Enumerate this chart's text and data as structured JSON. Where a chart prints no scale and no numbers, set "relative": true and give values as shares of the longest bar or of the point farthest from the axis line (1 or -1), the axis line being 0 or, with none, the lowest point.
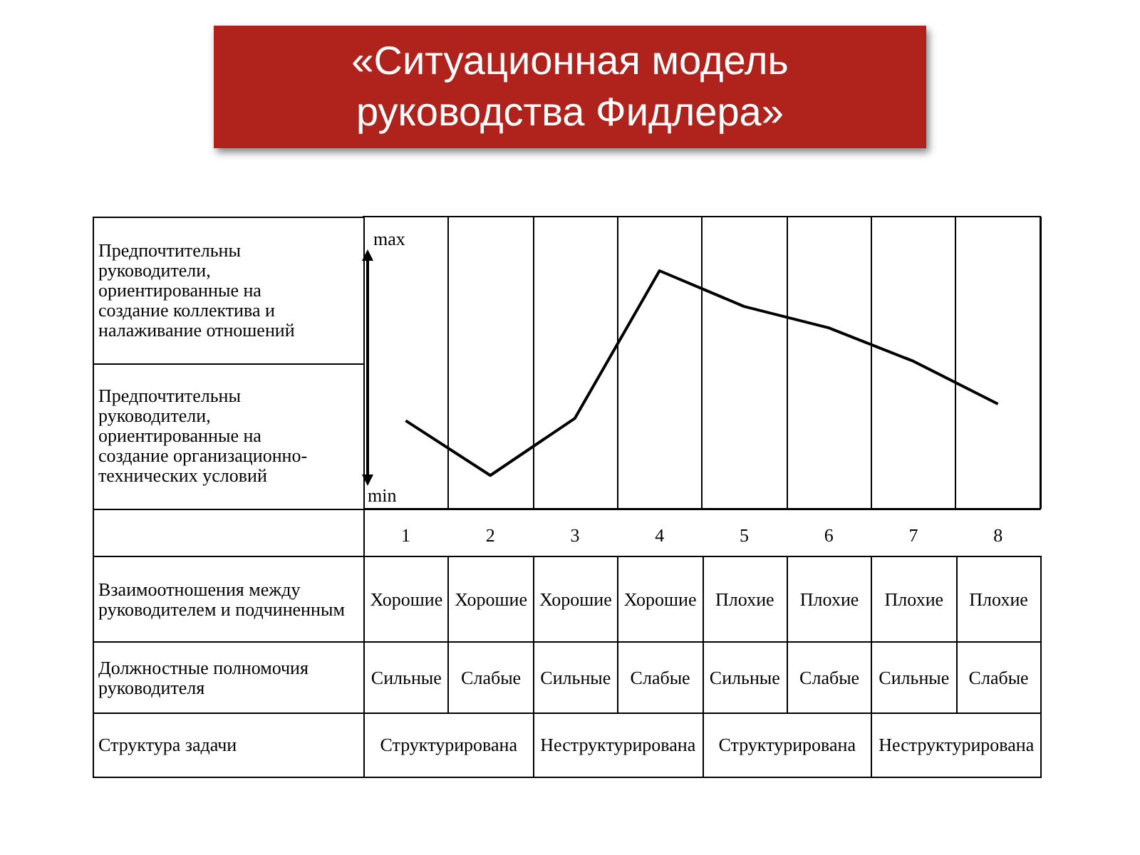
{
  "chart_data": {
    "type": "line",
    "title": "«Ситуационная модель руководства Фидлера»",
    "relative": true,
    "grid": "x",
    "categories": [
      "1",
      "2",
      "3",
      "4",
      "5",
      "6",
      "7",
      "8"
    ],
    "series": [
      {
        "color": "#000000",
        "values": [
          0.37,
          0.14,
          0.38,
          1,
          0.85,
          0.76,
          0.62,
          0.44
        ]
      }
    ],
    "annotations": [
      "Предпочтительны руководители, ориентированные на создание коллектива и налаживание отношений",
      "Предпочтительны руководители, ориентированные на создание организационно-технических условий",
      "max",
      "min",
      "Взаимоотношения между руководителем и подчиненным",
      "Хорошие",
      "Хорошие",
      "Хорошие",
      "Хорошие",
      "Плохие",
      "Плохие",
      "Плохие",
      "Плохие",
      "Должностные полномочия руководителя",
      "Сильные",
      "Слабые",
      "Сильные",
      "Слабые",
      "Сильные",
      "Слабые",
      "Сильные",
      "Слабые",
      "Структура задачи",
      "Структурирована",
      "Неструктурирована",
      "Структурирована",
      "Неструктурирована"
    ]
  }
}
